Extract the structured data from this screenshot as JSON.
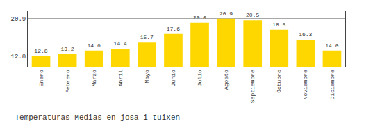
{
  "chart_data": {
    "type": "bar",
    "title": "Temperaturas Medias en josa i tuixen",
    "categories": [
      "Enero",
      "Febrero",
      "Marzo",
      "Abril",
      "Mayo",
      "Junio",
      "Julio",
      "Agosto",
      "Septiembre",
      "Octubre",
      "Noviembre",
      "Diciembre"
    ],
    "values": [
      12.8,
      13.2,
      14.0,
      14.4,
      15.7,
      17.6,
      20.0,
      20.9,
      20.5,
      18.5,
      16.3,
      14.0
    ],
    "value_labels": [
      "12.8",
      "13.2",
      "14.0",
      "14.4",
      "15.7",
      "17.6",
      "20.0",
      "20.9",
      "20.5",
      "18.5",
      "16.3",
      "14.0"
    ],
    "color": "#FFD700",
    "ylim": [
      10.5,
      22.5
    ],
    "yticks": [
      12.8,
      20.9
    ],
    "grid": true,
    "data_labels": true
  }
}
